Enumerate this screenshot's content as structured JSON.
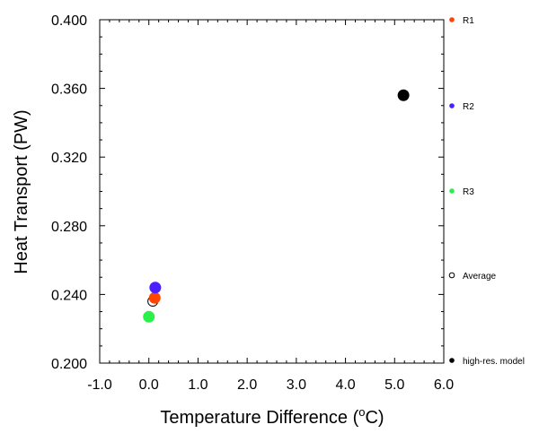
{
  "chart_data": {
    "type": "scatter",
    "xlabel": "Temperature Difference (",
    "xlabel_sup": "o",
    "xlabel_tail": "C)",
    "ylabel": "Heat Transport (PW)",
    "xlim": [
      -1.0,
      6.0
    ],
    "ylim": [
      0.2,
      0.4
    ],
    "x_ticks": [
      -1.0,
      0.0,
      1.0,
      2.0,
      3.0,
      4.0,
      5.0,
      6.0
    ],
    "x_tick_labels": [
      "-1.0",
      "0.0",
      "1.0",
      "2.0",
      "3.0",
      "4.0",
      "5.0",
      "6.0"
    ],
    "y_ticks": [
      0.2,
      0.24,
      0.28,
      0.32,
      0.36,
      0.4
    ],
    "y_tick_labels": [
      "0.200",
      "0.240",
      "0.280",
      "0.320",
      "0.360",
      "0.400"
    ],
    "grid": false,
    "legend_placement": "right, outside plot",
    "series": [
      {
        "name": "R1",
        "color": "#ff4500",
        "marker": "filled-circle",
        "points": [
          {
            "x": 0.12,
            "y": 0.238
          }
        ]
      },
      {
        "name": "R2",
        "color": "#4a1eff",
        "marker": "filled-circle",
        "points": [
          {
            "x": 0.13,
            "y": 0.244
          }
        ]
      },
      {
        "name": "R3",
        "color": "#2bf04a",
        "marker": "filled-circle",
        "points": [
          {
            "x": 0.0,
            "y": 0.227
          }
        ]
      },
      {
        "name": "Average",
        "color": "#000000",
        "marker": "hollow-circle",
        "points": [
          {
            "x": 0.08,
            "y": 0.236
          }
        ]
      },
      {
        "name": "high-res. model",
        "color": "#000000",
        "marker": "filled-circle",
        "points": [
          {
            "x": 5.18,
            "y": 0.356
          }
        ]
      }
    ]
  }
}
